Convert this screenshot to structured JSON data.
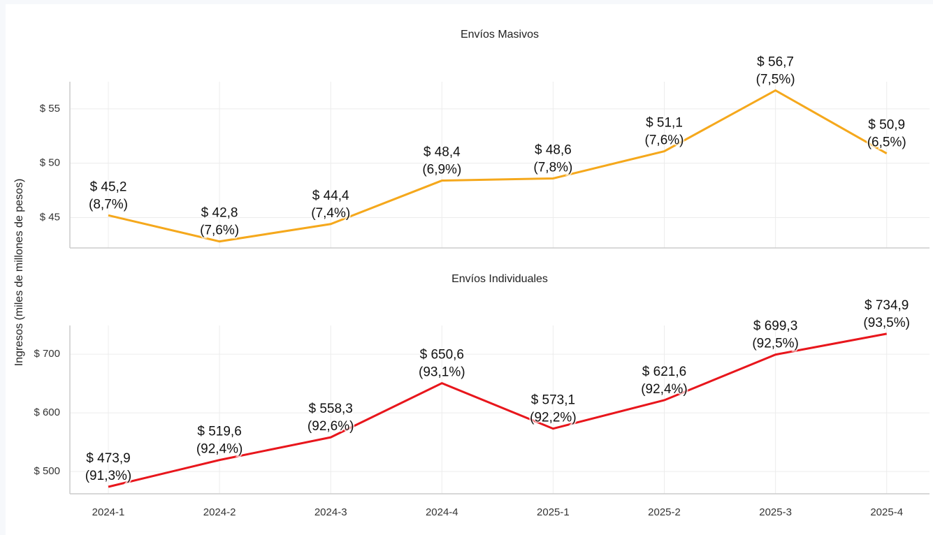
{
  "ylabel": "Ingresos (miles de millones de pesos)",
  "chart_data": [
    {
      "type": "line",
      "title": "Envíos Masivos",
      "categories": [
        "2024-1",
        "2024-2",
        "2024-3",
        "2024-4",
        "2025-1",
        "2025-2",
        "2025-3",
        "2025-4"
      ],
      "series": [
        {
          "name": "Envíos Masivos",
          "color": "#f5a81c",
          "values": [
            45.2,
            42.8,
            44.4,
            48.4,
            48.6,
            51.1,
            56.7,
            50.9
          ],
          "value_labels": [
            "$ 45,2",
            "$ 42,8",
            "$ 44,4",
            "$ 48,4",
            "$ 48,6",
            "$ 51,1",
            "$ 56,7",
            "$ 50,9"
          ],
          "share_labels": [
            "(8,7%)",
            "(7,6%)",
            "(7,4%)",
            "(6,9%)",
            "(7,8%)",
            "(7,6%)",
            "(7,5%)",
            "(6,5%)"
          ]
        }
      ],
      "ylim": [
        42.2,
        57.5
      ],
      "yticks": [
        {
          "value": 45,
          "label": "$ 45"
        },
        {
          "value": 50,
          "label": "$ 50"
        },
        {
          "value": 55,
          "label": "$ 55"
        }
      ],
      "grid": true
    },
    {
      "type": "line",
      "title": "Envíos Individuales",
      "categories": [
        "2024-1",
        "2024-2",
        "2024-3",
        "2024-4",
        "2025-1",
        "2025-2",
        "2025-3",
        "2025-4"
      ],
      "series": [
        {
          "name": "Envíos Individuales",
          "color": "#e8161c",
          "values": [
            473.9,
            519.6,
            558.3,
            650.6,
            573.1,
            621.6,
            699.3,
            734.9
          ],
          "value_labels": [
            "$ 473,9",
            "$ 519,6",
            "$ 558,3",
            "$ 650,6",
            "$ 573,1",
            "$ 621,6",
            "$ 699,3",
            "$ 734,9"
          ],
          "share_labels": [
            "(91,3%)",
            "(92,4%)",
            "(92,6%)",
            "(93,1%)",
            "(92,2%)",
            "(92,4%)",
            "(92,5%)",
            "(93,5%)"
          ]
        }
      ],
      "ylim": [
        462,
        749
      ],
      "yticks": [
        {
          "value": 500,
          "label": "$ 500"
        },
        {
          "value": 600,
          "label": "$ 600"
        },
        {
          "value": 700,
          "label": "$ 700"
        }
      ],
      "grid": true
    }
  ]
}
